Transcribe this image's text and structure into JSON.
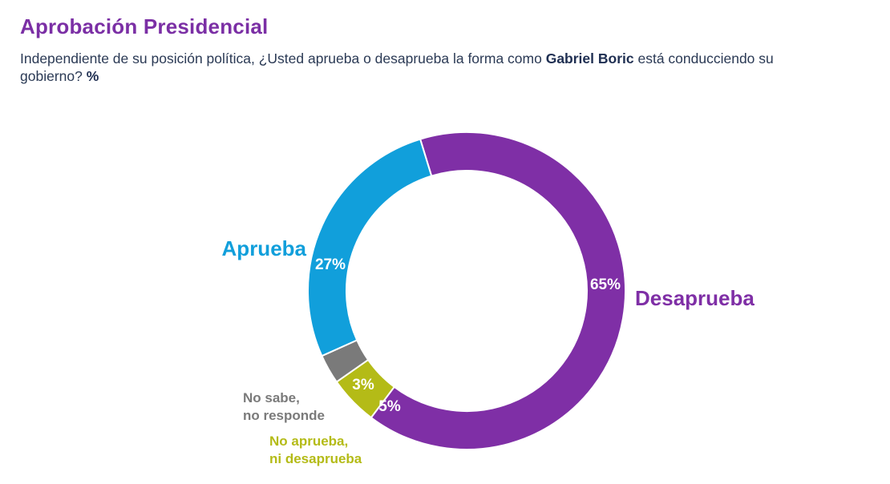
{
  "title": "Aprobación Presidencial",
  "subtitle": {
    "part1": "Independiente de su posición política, ¿Usted aprueba o desaprueba la forma como ",
    "bold1": "Gabriel Boric",
    "part2": " está conducciendo su gobierno? ",
    "bold2": "%"
  },
  "colors": {
    "title": "#7b2fa5",
    "aprueba": "#119fdb",
    "desaprueba": "#7f2fa6",
    "no_aprueba_ni_desaprueba": "#b4bb17",
    "no_sabe": "#7a7a7a"
  },
  "chart_data": {
    "type": "pie",
    "donut": true,
    "categories": [
      "Desaprueba",
      "No aprueba, ni desaprueba",
      "No sabe, no responde",
      "Aprueba"
    ],
    "values": [
      65,
      5,
      3,
      27
    ],
    "value_labels": [
      "65%",
      "5%",
      "3%",
      "27%"
    ],
    "series_labels": [
      {
        "text": [
          "Desaprueba"
        ]
      },
      {
        "text": [
          "No aprueba,",
          "ni desaprueba"
        ]
      },
      {
        "text": [
          "No sabe,",
          "no responde"
        ]
      },
      {
        "text": [
          "Aprueba"
        ]
      }
    ]
  }
}
